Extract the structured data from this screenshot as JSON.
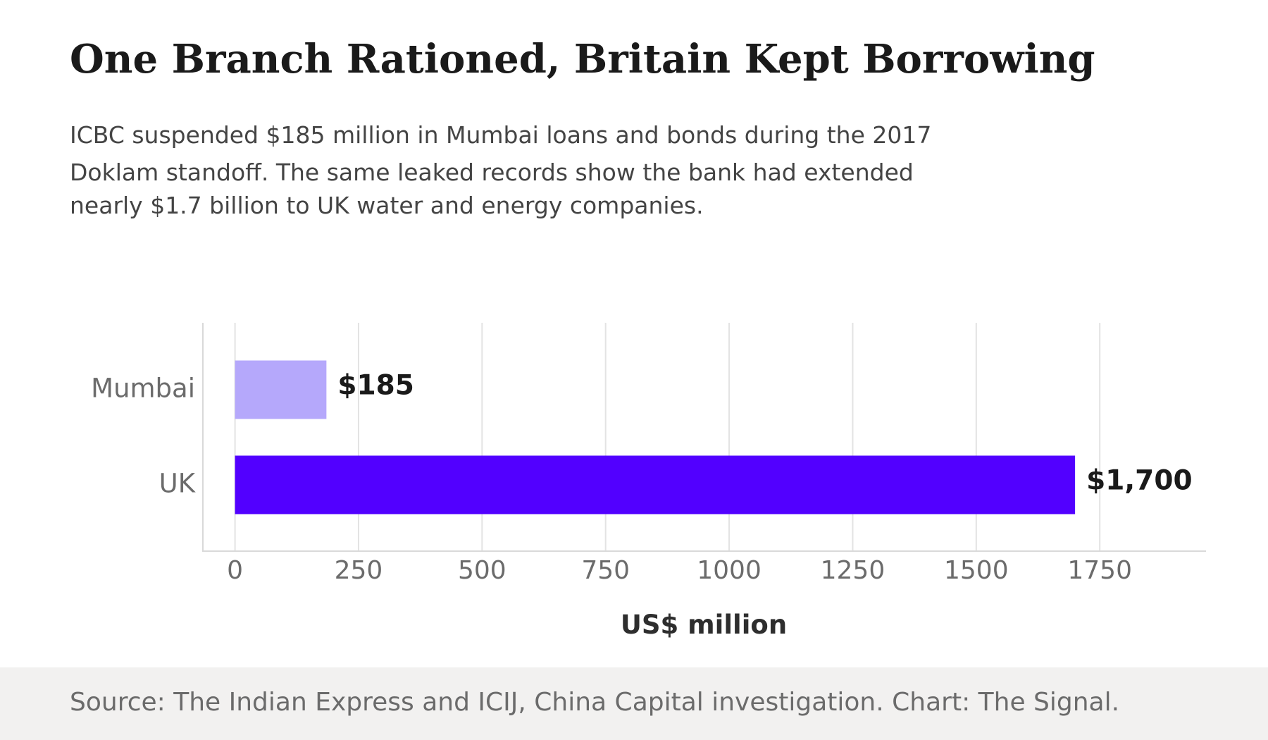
{
  "header": {
    "title": "One Branch Rationed, Britain Kept Borrowing",
    "subtitle_lines": [
      "ICBC suspended $185 million in Mumbai loans and bonds during the 2017",
      "Doklam standoff. The same leaked records show the bank had extended",
      "nearly $1.7 billion to UK water and energy companies."
    ]
  },
  "chart_data": {
    "type": "bar",
    "orientation": "horizontal",
    "categories": [
      "Mumbai",
      "UK"
    ],
    "values": [
      185,
      1700
    ],
    "data_labels": [
      "$185",
      "$1,700"
    ],
    "colors": [
      "#b5a8fb",
      "#5200ff"
    ],
    "xlabel": "US$ million",
    "ylabel": "",
    "xlim": [
      -65,
      1965
    ],
    "xticks": [
      0,
      250,
      500,
      750,
      1000,
      1250,
      1500,
      1750
    ],
    "xtick_labels": [
      "0",
      "250",
      "500",
      "750",
      "1000",
      "1250",
      "1500",
      "1750"
    ],
    "grid": true
  },
  "footer": {
    "source": "Source: The Indian Express and ICIJ, China Capital investigation. Chart: The Signal."
  }
}
